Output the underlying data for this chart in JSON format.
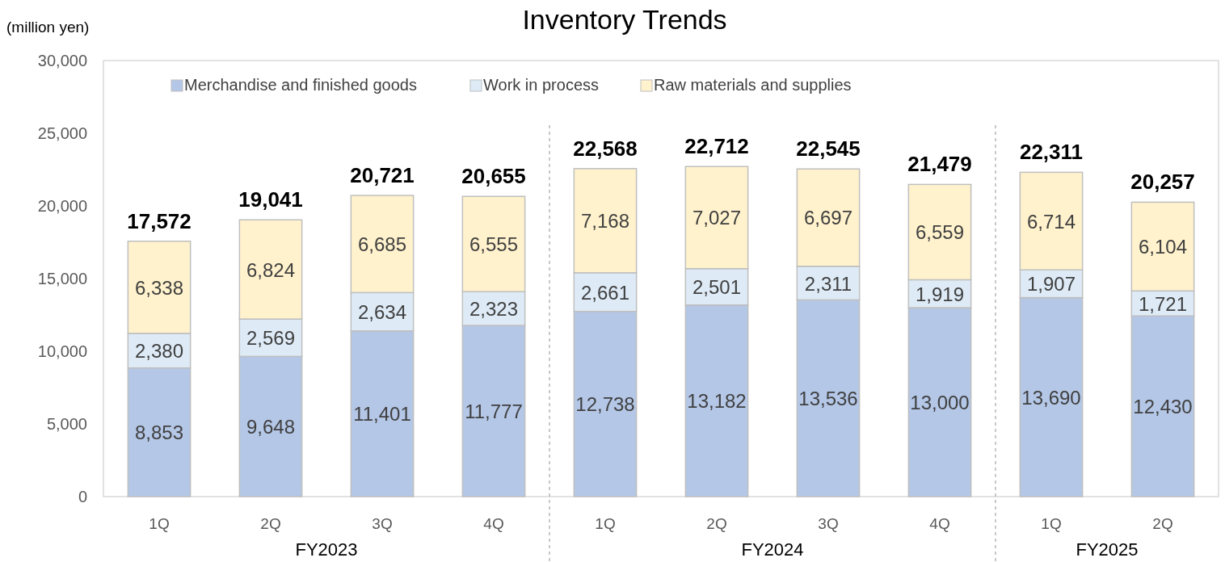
{
  "chart_data": {
    "type": "bar",
    "title": "Inventory Trends",
    "ylabel": "(million yen)",
    "stacked": true,
    "grid": false,
    "legend": "top",
    "categories": [
      "1Q",
      "2Q",
      "3Q",
      "4Q",
      "1Q",
      "2Q",
      "3Q",
      "4Q",
      "1Q",
      "2Q"
    ],
    "series": [
      {
        "name": "Merchandise and finished goods",
        "color": "#b4c7e7",
        "values": [
          8853,
          9648,
          11401,
          11777,
          12738,
          13182,
          13536,
          13000,
          13690,
          12430
        ],
        "value_labels": [
          "8,853",
          "9,648",
          "11,401",
          "11,777",
          "12,738",
          "13,182",
          "13,536",
          "13,000",
          "13,690",
          "12,430"
        ]
      },
      {
        "name": "Work in process",
        "color": "#deebf7",
        "values": [
          2380,
          2569,
          2634,
          2323,
          2661,
          2501,
          2311,
          1919,
          1907,
          1721
        ],
        "value_labels": [
          "2,380",
          "2,569",
          "2,634",
          "2,323",
          "2,661",
          "2,501",
          "2,311",
          "1,919",
          "1,907",
          "1,721"
        ]
      },
      {
        "name": "Raw materials and supplies",
        "color": "#fff2cc",
        "values": [
          6338,
          6824,
          6685,
          6555,
          7168,
          7027,
          6697,
          6559,
          6714,
          6104
        ],
        "value_labels": [
          "6,338",
          "6,824",
          "6,685",
          "6,555",
          "7,168",
          "7,027",
          "6,697",
          "6,559",
          "6,714",
          "6,104"
        ]
      }
    ],
    "totals": [
      "17,572",
      "19,041",
      "20,721",
      "20,655",
      "22,568",
      "22,712",
      "22,545",
      "21,479",
      "22,311",
      "20,257"
    ],
    "ylim": [
      0,
      30000
    ],
    "yticks": [
      {
        "value": 0,
        "label": "0"
      },
      {
        "value": 5000,
        "label": "5,000"
      },
      {
        "value": 10000,
        "label": "10,000"
      },
      {
        "value": 15000,
        "label": "15,000"
      },
      {
        "value": 20000,
        "label": "20,000"
      },
      {
        "value": 25000,
        "label": "25,000"
      },
      {
        "value": 30000,
        "label": "30,000"
      }
    ],
    "annotations": [
      "FY2023",
      "FY2024",
      "FY2025"
    ]
  }
}
